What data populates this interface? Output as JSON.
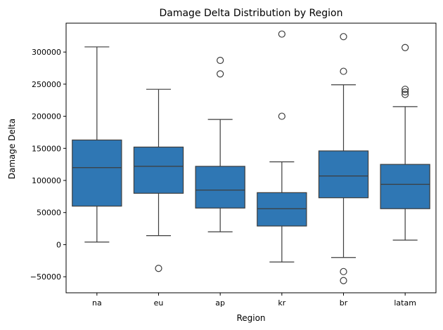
{
  "chart_data": {
    "type": "box",
    "title": "Damage Delta Distribution by Region",
    "xlabel": "Region",
    "ylabel": "Damage Delta",
    "ylim": [
      -75000,
      345000
    ],
    "yticks": [
      -50000,
      0,
      50000,
      100000,
      150000,
      200000,
      250000,
      300000
    ],
    "ytick_labels": [
      "−50000",
      "0",
      "50000",
      "100000",
      "150000",
      "200000",
      "250000",
      "300000"
    ],
    "categories": [
      "na",
      "eu",
      "ap",
      "kr",
      "br",
      "latam"
    ],
    "box_color": "#2f77b4",
    "line_color": "#3d3d3d",
    "boxes": [
      {
        "category": "na",
        "whisker_low": 4000,
        "q1": 60000,
        "median": 120000,
        "q3": 163000,
        "whisker_high": 308000,
        "outliers": []
      },
      {
        "category": "eu",
        "whisker_low": 14000,
        "q1": 80000,
        "median": 122000,
        "q3": 152000,
        "whisker_high": 242000,
        "outliers": [
          -37000
        ]
      },
      {
        "category": "ap",
        "whisker_low": 20000,
        "q1": 57000,
        "median": 85000,
        "q3": 122000,
        "whisker_high": 195000,
        "outliers": [
          266000,
          287000
        ]
      },
      {
        "category": "kr",
        "whisker_low": -27000,
        "q1": 29000,
        "median": 56000,
        "q3": 81000,
        "whisker_high": 129000,
        "outliers": [
          200000,
          328000
        ]
      },
      {
        "category": "br",
        "whisker_low": -20000,
        "q1": 73000,
        "median": 107000,
        "q3": 146000,
        "whisker_high": 249000,
        "outliers": [
          -42000,
          -56000,
          270000,
          324000
        ]
      },
      {
        "category": "latam",
        "whisker_low": 7000,
        "q1": 56000,
        "median": 94000,
        "q3": 125000,
        "whisker_high": 215000,
        "outliers": [
          234000,
          238000,
          242000,
          307000
        ]
      }
    ]
  }
}
